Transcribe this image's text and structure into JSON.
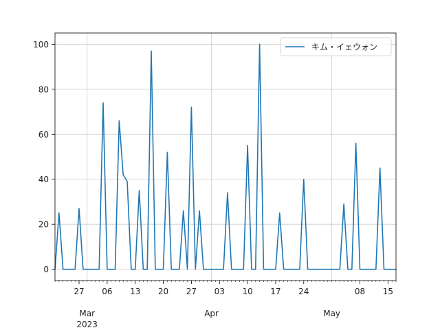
{
  "chart_data": {
    "type": "line",
    "title": "",
    "xlabel": "",
    "ylabel": "",
    "grid": true,
    "legend_position": "top-right",
    "x_start": "2023-02-21",
    "x_end": "2023-05-17",
    "xlim": [
      "2023-02-21",
      "2023-05-17"
    ],
    "ylim": [
      -5,
      105
    ],
    "y_ticks": [
      0,
      20,
      40,
      60,
      80,
      100
    ],
    "x_major_ticks": [
      {
        "date": "2023-02-27",
        "label": "27"
      },
      {
        "date": "2023-03-06",
        "label": "06"
      },
      {
        "date": "2023-03-13",
        "label": "13"
      },
      {
        "date": "2023-03-20",
        "label": "20"
      },
      {
        "date": "2023-03-27",
        "label": "27"
      },
      {
        "date": "2023-04-03",
        "label": "03"
      },
      {
        "date": "2023-04-10",
        "label": "10"
      },
      {
        "date": "2023-04-17",
        "label": "17"
      },
      {
        "date": "2023-04-24",
        "label": "24"
      },
      {
        "date": "2023-05-08",
        "label": "08"
      },
      {
        "date": "2023-05-15",
        "label": "15"
      }
    ],
    "x_month_ticks": [
      {
        "date": "2023-03-01",
        "label": "Mar",
        "sublabel": "2023"
      },
      {
        "date": "2023-04-01",
        "label": "Apr",
        "sublabel": ""
      },
      {
        "date": "2023-05-01",
        "label": "May",
        "sublabel": ""
      }
    ],
    "series": [
      {
        "name": "キム・イェウォン",
        "color": "#1f77b4",
        "points": [
          [
            "2023-02-21",
            0
          ],
          [
            "2023-02-22",
            25
          ],
          [
            "2023-02-23",
            0
          ],
          [
            "2023-02-24",
            0
          ],
          [
            "2023-02-25",
            0
          ],
          [
            "2023-02-26",
            0
          ],
          [
            "2023-02-27",
            27
          ],
          [
            "2023-02-28",
            0
          ],
          [
            "2023-03-01",
            0
          ],
          [
            "2023-03-02",
            0
          ],
          [
            "2023-03-03",
            0
          ],
          [
            "2023-03-04",
            0
          ],
          [
            "2023-03-05",
            74
          ],
          [
            "2023-03-06",
            0
          ],
          [
            "2023-03-07",
            0
          ],
          [
            "2023-03-08",
            0
          ],
          [
            "2023-03-09",
            66
          ],
          [
            "2023-03-10",
            42
          ],
          [
            "2023-03-11",
            39
          ],
          [
            "2023-03-12",
            0
          ],
          [
            "2023-03-13",
            0
          ],
          [
            "2023-03-14",
            35
          ],
          [
            "2023-03-15",
            0
          ],
          [
            "2023-03-16",
            0
          ],
          [
            "2023-03-17",
            97
          ],
          [
            "2023-03-18",
            0
          ],
          [
            "2023-03-19",
            0
          ],
          [
            "2023-03-20",
            0
          ],
          [
            "2023-03-21",
            52
          ],
          [
            "2023-03-22",
            0
          ],
          [
            "2023-03-23",
            0
          ],
          [
            "2023-03-24",
            0
          ],
          [
            "2023-03-25",
            26
          ],
          [
            "2023-03-26",
            0
          ],
          [
            "2023-03-27",
            72
          ],
          [
            "2023-03-28",
            0
          ],
          [
            "2023-03-29",
            26
          ],
          [
            "2023-03-30",
            0
          ],
          [
            "2023-03-31",
            0
          ],
          [
            "2023-04-01",
            0
          ],
          [
            "2023-04-02",
            0
          ],
          [
            "2023-04-03",
            0
          ],
          [
            "2023-04-04",
            0
          ],
          [
            "2023-04-05",
            34
          ],
          [
            "2023-04-06",
            0
          ],
          [
            "2023-04-07",
            0
          ],
          [
            "2023-04-08",
            0
          ],
          [
            "2023-04-09",
            0
          ],
          [
            "2023-04-10",
            55
          ],
          [
            "2023-04-11",
            0
          ],
          [
            "2023-04-12",
            0
          ],
          [
            "2023-04-13",
            100
          ],
          [
            "2023-04-14",
            0
          ],
          [
            "2023-04-15",
            0
          ],
          [
            "2023-04-16",
            0
          ],
          [
            "2023-04-17",
            0
          ],
          [
            "2023-04-18",
            25
          ],
          [
            "2023-04-19",
            0
          ],
          [
            "2023-04-20",
            0
          ],
          [
            "2023-04-21",
            0
          ],
          [
            "2023-04-22",
            0
          ],
          [
            "2023-04-23",
            0
          ],
          [
            "2023-04-24",
            40
          ],
          [
            "2023-04-25",
            0
          ],
          [
            "2023-04-26",
            0
          ],
          [
            "2023-04-27",
            0
          ],
          [
            "2023-04-28",
            0
          ],
          [
            "2023-04-29",
            0
          ],
          [
            "2023-04-30",
            0
          ],
          [
            "2023-05-01",
            0
          ],
          [
            "2023-05-02",
            0
          ],
          [
            "2023-05-03",
            0
          ],
          [
            "2023-05-04",
            29
          ],
          [
            "2023-05-05",
            0
          ],
          [
            "2023-05-06",
            0
          ],
          [
            "2023-05-07",
            56
          ],
          [
            "2023-05-08",
            0
          ],
          [
            "2023-05-09",
            0
          ],
          [
            "2023-05-10",
            0
          ],
          [
            "2023-05-11",
            0
          ],
          [
            "2023-05-12",
            0
          ],
          [
            "2023-05-13",
            45
          ],
          [
            "2023-05-14",
            0
          ],
          [
            "2023-05-15",
            0
          ],
          [
            "2023-05-16",
            0
          ],
          [
            "2023-05-17",
            0
          ]
        ]
      }
    ]
  }
}
